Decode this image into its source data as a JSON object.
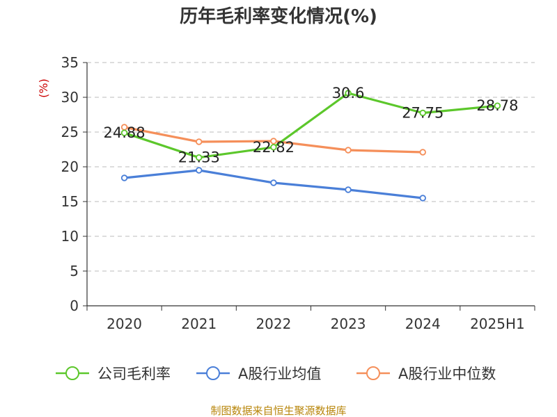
{
  "chart_data": {
    "type": "line",
    "title": "历年毛利率变化情况(%)",
    "ylabel": "(%)",
    "xlabel": "",
    "categories": [
      "2020",
      "2021",
      "2022",
      "2023",
      "2024",
      "2025H1"
    ],
    "ylim": [
      0,
      35
    ],
    "yticks": [
      0,
      5,
      10,
      15,
      20,
      25,
      30,
      35
    ],
    "grid": true,
    "legend_position": "bottom",
    "series": [
      {
        "name": "公司毛利率",
        "color": "#5cc72b",
        "values": [
          24.88,
          21.33,
          22.82,
          30.6,
          27.75,
          28.78
        ],
        "labels": [
          "24.88",
          "21.33",
          "22.82",
          "30.6",
          "27.75",
          "28.78"
        ]
      },
      {
        "name": "A股行业均值",
        "color": "#4a7fd8",
        "values": [
          18.4,
          19.5,
          17.7,
          16.7,
          15.5,
          null
        ]
      },
      {
        "name": "A股行业中位数",
        "color": "#f58f5a",
        "values": [
          25.7,
          23.6,
          23.7,
          22.4,
          22.1,
          null
        ]
      }
    ],
    "source": "制图数据来自恒生聚源数据库"
  }
}
